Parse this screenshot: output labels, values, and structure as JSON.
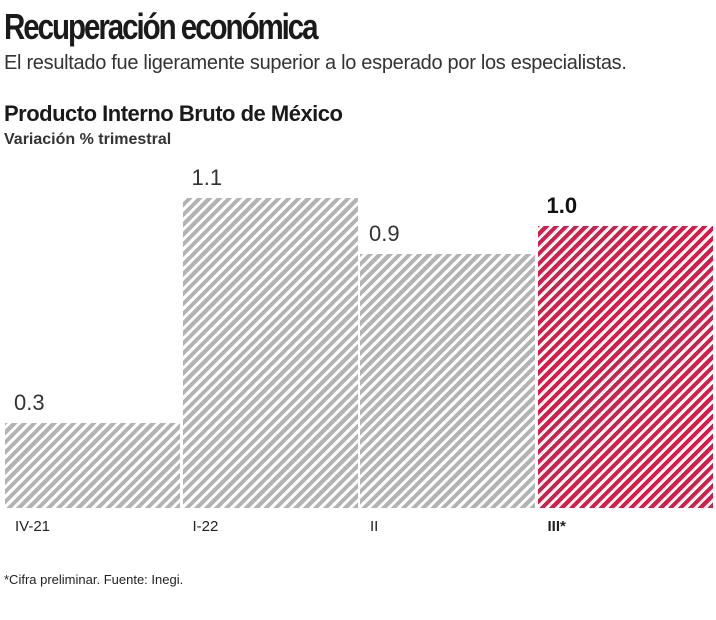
{
  "header": {
    "title": "Recuperación económica",
    "subtitle": "El resultado fue ligeramente superior a lo esperado por los especialistas."
  },
  "chart_data": {
    "type": "bar",
    "title": "Producto Interno Bruto de México",
    "ylabel": "Variación % trimestral",
    "categories": [
      "IV-21",
      "I-22",
      "II",
      "III*"
    ],
    "values": [
      0.3,
      1.1,
      0.9,
      1.0
    ],
    "value_labels": [
      "0.3",
      "1.1",
      "0.9",
      "1.0"
    ],
    "highlight_index": 3,
    "colors": {
      "default": "#b3b3b3",
      "highlight": "#d81b47"
    },
    "ylim": [
      0,
      1.1
    ],
    "grid": false
  },
  "footnote": "*Cifra preliminar. Fuente: Inegi."
}
